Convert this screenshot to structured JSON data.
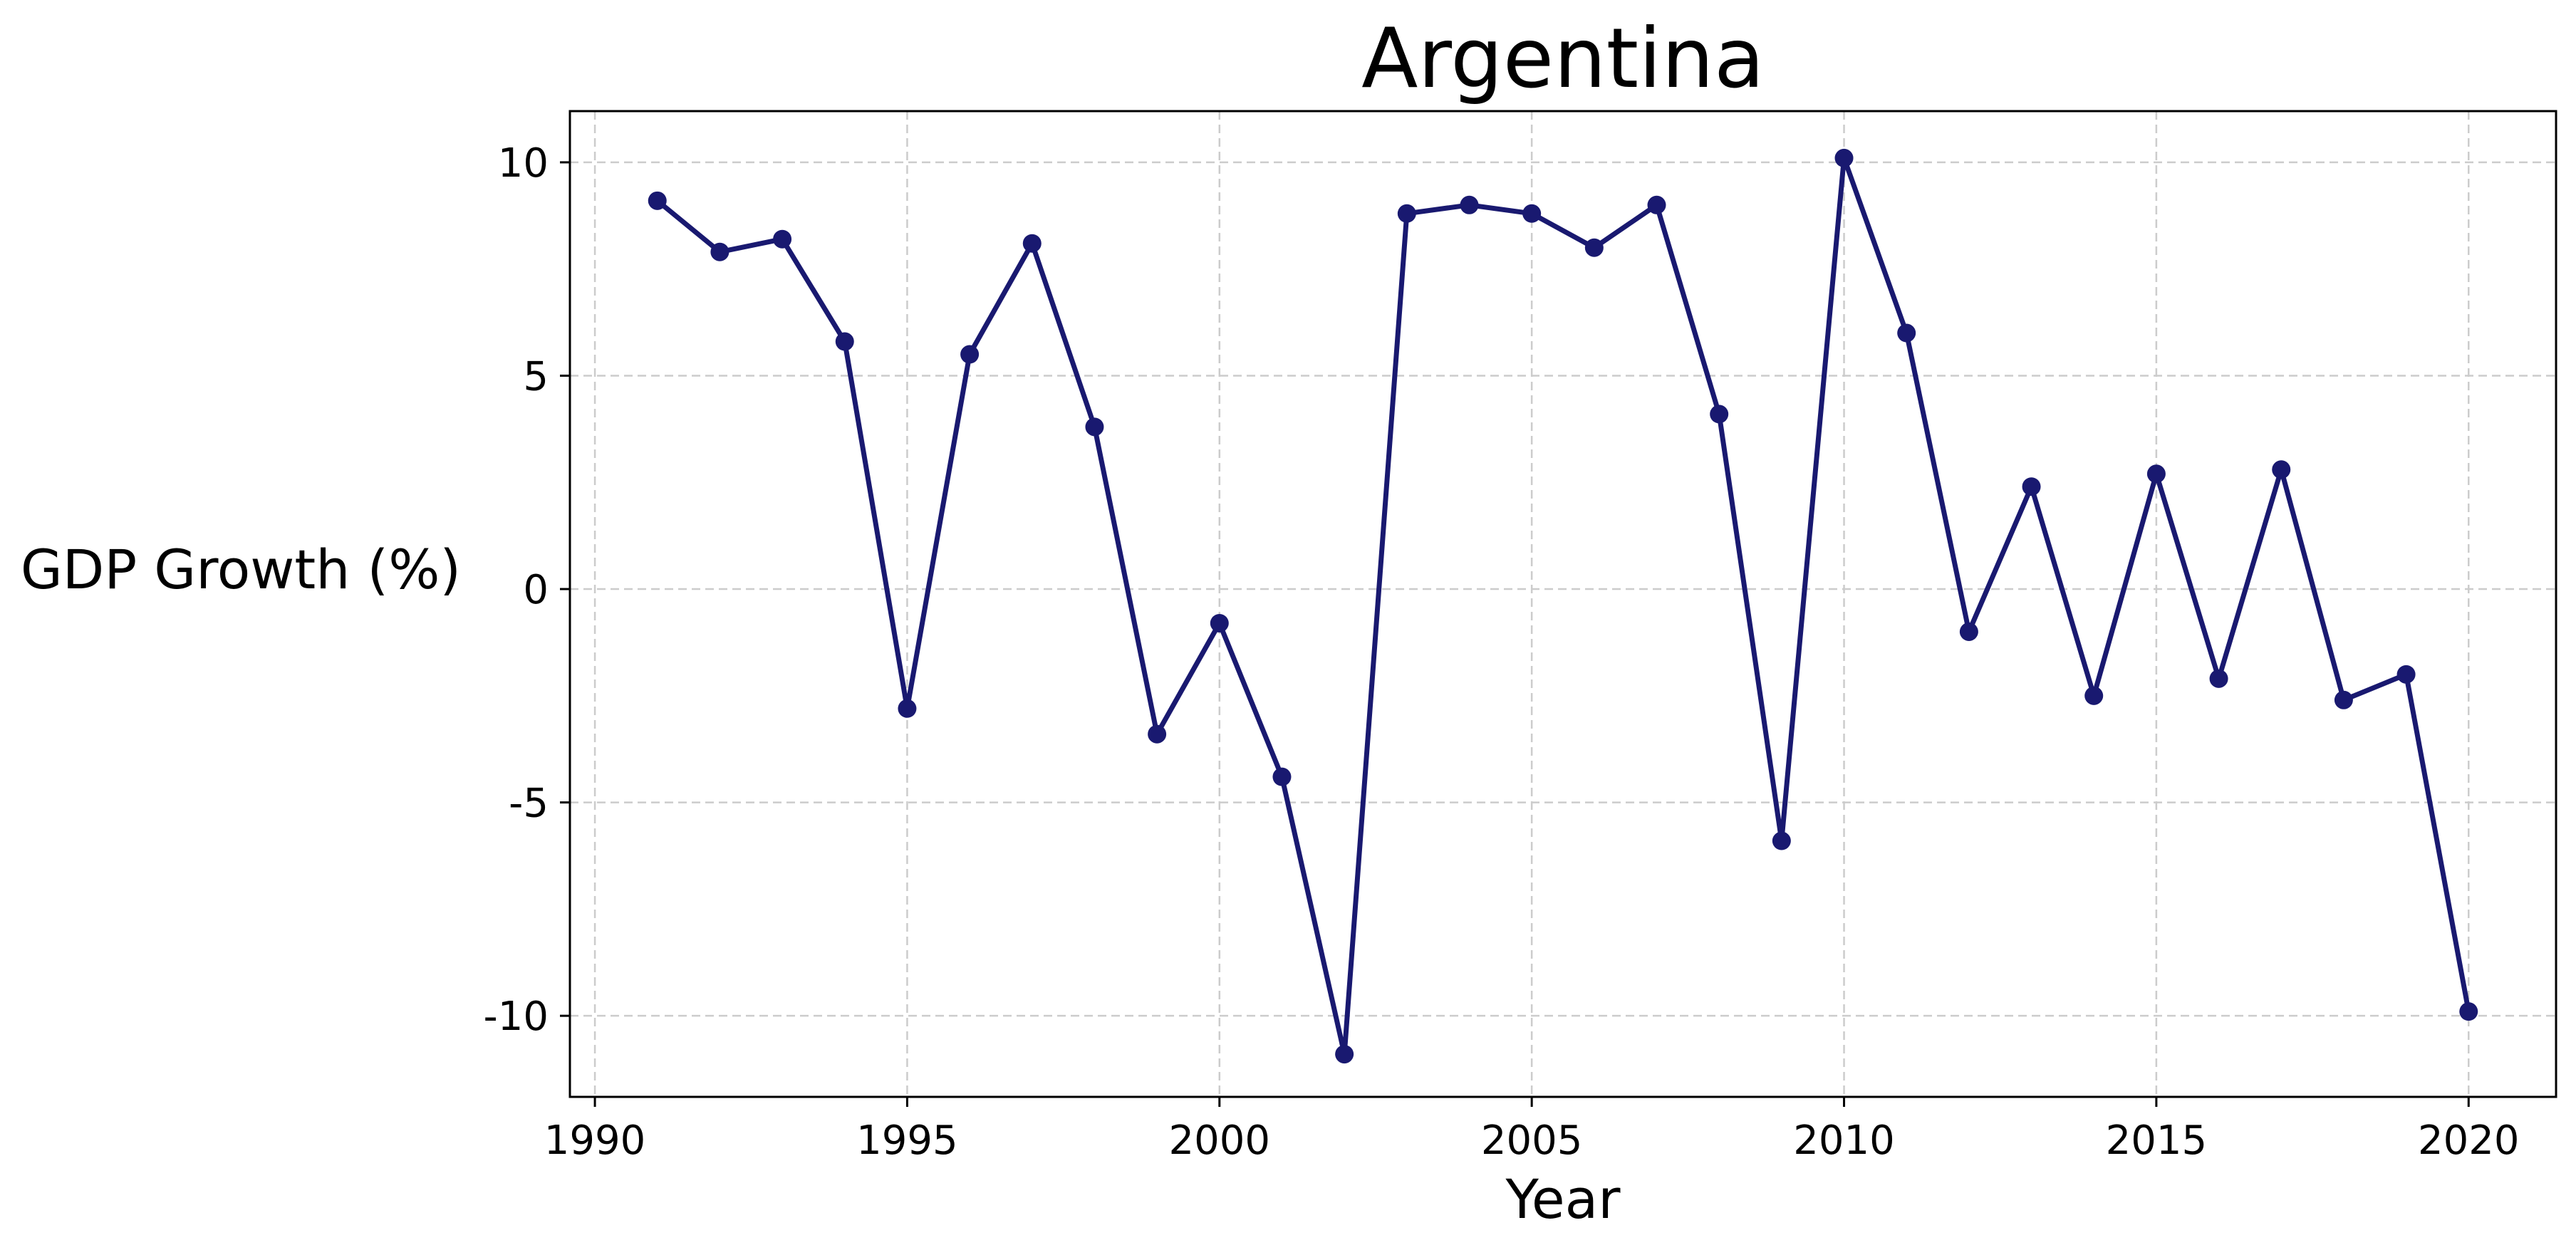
{
  "chart_data": {
    "type": "line",
    "title": "Argentina",
    "xlabel": "Year",
    "ylabel": "GDP Growth (%)",
    "xlim": [
      1989.6,
      2021.4
    ],
    "ylim": [
      -11.9,
      11.2
    ],
    "xticks": [
      1990,
      1995,
      2000,
      2005,
      2010,
      2015,
      2020
    ],
    "xtick_labels": [
      "1990",
      "1995",
      "2000",
      "2005",
      "2010",
      "2015",
      "2020"
    ],
    "yticks": [
      -10,
      -5,
      0,
      5,
      10
    ],
    "ytick_labels": [
      "-10",
      "-5",
      "0",
      "5",
      "10"
    ],
    "grid": true,
    "color": "#191970",
    "x": [
      1991,
      1992,
      1993,
      1994,
      1995,
      1996,
      1997,
      1998,
      1999,
      2000,
      2001,
      2002,
      2003,
      2004,
      2005,
      2006,
      2007,
      2008,
      2009,
      2010,
      2011,
      2012,
      2013,
      2014,
      2015,
      2016,
      2017,
      2018,
      2019,
      2020
    ],
    "y": [
      9.1,
      7.9,
      8.2,
      5.8,
      -2.8,
      5.5,
      8.1,
      3.8,
      -3.4,
      -0.8,
      -4.4,
      -10.9,
      8.8,
      9.0,
      8.8,
      8.0,
      9.0,
      4.1,
      -5.9,
      10.1,
      6.0,
      -1.0,
      2.4,
      -2.5,
      2.7,
      -2.1,
      2.8,
      -2.6,
      -2.0,
      -9.9
    ]
  }
}
